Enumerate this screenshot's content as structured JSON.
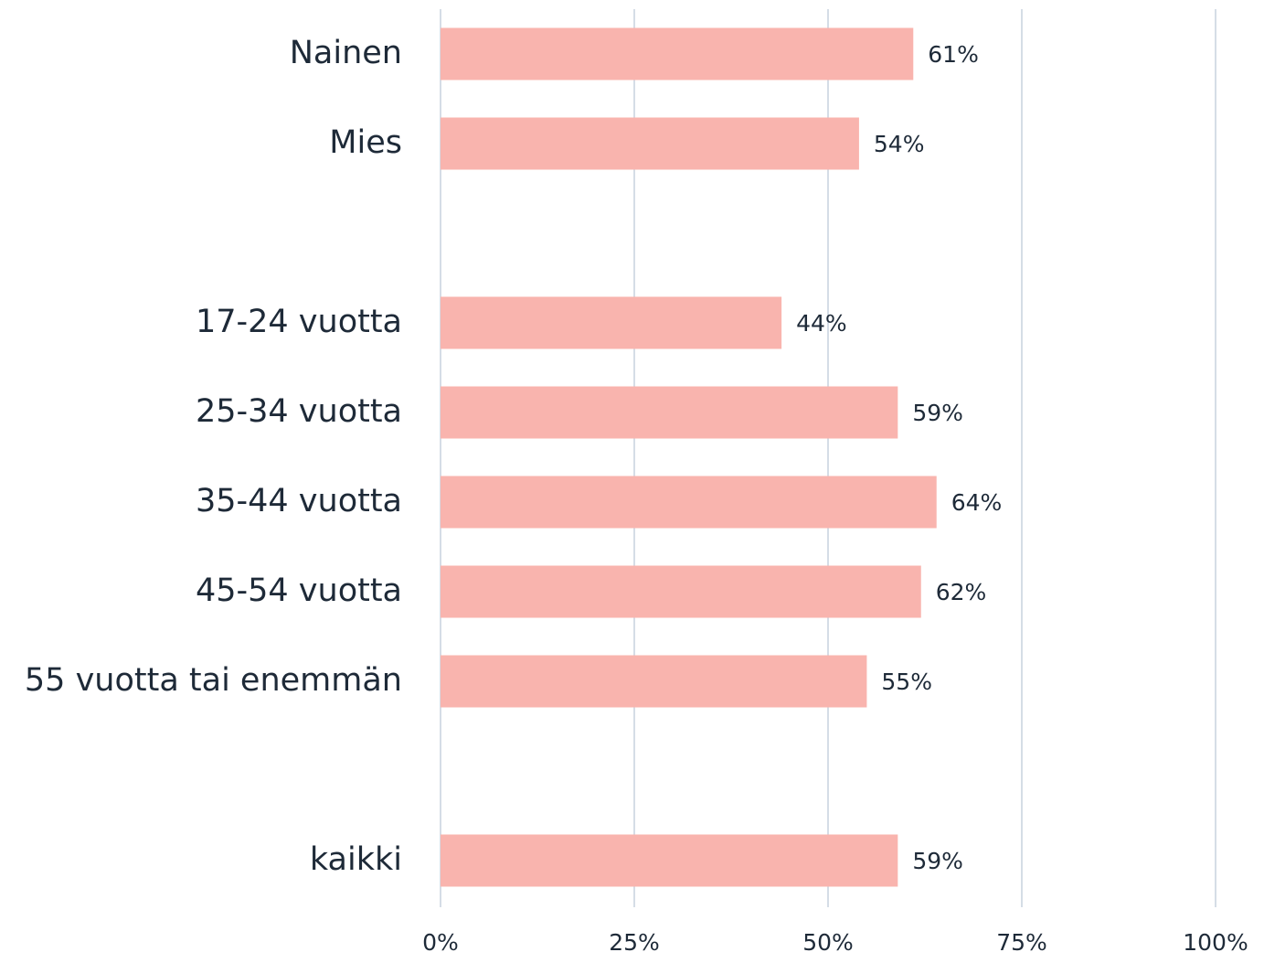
{
  "chart_data": {
    "type": "bar",
    "orientation": "horizontal",
    "categories": [
      "Nainen",
      "Mies",
      null,
      "17-24 vuotta",
      "25-34 vuotta",
      "35-44 vuotta",
      "45-54 vuotta",
      "55 vuotta tai enemmän",
      null,
      "kaikki"
    ],
    "values": [
      61,
      54,
      null,
      44,
      59,
      64,
      62,
      55,
      null,
      59
    ],
    "value_labels": [
      "61%",
      "54%",
      null,
      "44%",
      "59%",
      "64%",
      "62%",
      "55%",
      null,
      "59%"
    ],
    "color": "#f9b4ae",
    "xlim": [
      0,
      100
    ],
    "xticks": [
      {
        "value": 0,
        "label": "0%"
      },
      {
        "value": 25,
        "label": "25%"
      },
      {
        "value": 50,
        "label": "50%"
      },
      {
        "value": 75,
        "label": "75%"
      },
      {
        "value": 100,
        "label": "100%"
      }
    ],
    "grid": true
  }
}
